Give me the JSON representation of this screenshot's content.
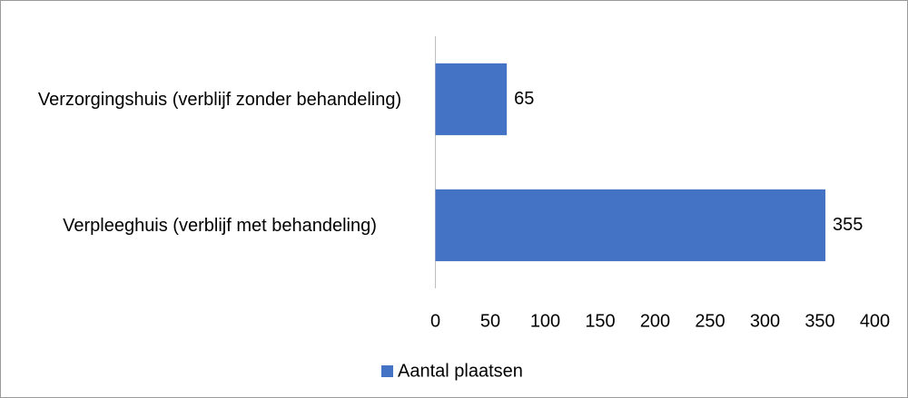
{
  "chart_data": {
    "type": "bar",
    "orientation": "horizontal",
    "categories": [
      "Verzorgingshuis (verblijf zonder behandeling)",
      "Verpleeghuis (verblijf met behandeling)"
    ],
    "series": [
      {
        "name": "Aantal plaatsen",
        "color": "#4472c4",
        "values": [
          65,
          355
        ]
      }
    ],
    "xlim": [
      0,
      400
    ],
    "xticks": [
      0,
      50,
      100,
      150,
      200,
      250,
      300,
      350,
      400
    ],
    "grid": false,
    "legend": "bottom"
  }
}
